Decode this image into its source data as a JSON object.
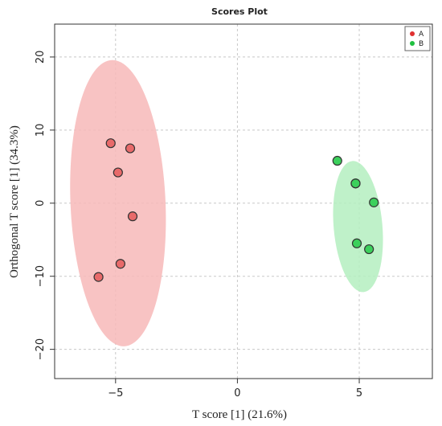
{
  "chart_data": {
    "type": "scatter",
    "title": "Scores Plot",
    "xlabel": "T score [1] (21.6%)",
    "ylabel": "Orthogonal T score [1] (34.3%)",
    "xlim": [
      -7.5,
      8
    ],
    "ylim": [
      -24,
      24.5
    ],
    "xticks": [
      -5,
      0,
      5
    ],
    "yticks": [
      -20,
      -10,
      0,
      10,
      20
    ],
    "grid": true,
    "legend_position": "top-right",
    "series": [
      {
        "name": "A",
        "color": "#e03030",
        "fill": "#e86a6a",
        "ellipse_color": "#f7b8b8",
        "points": [
          {
            "x": -5.2,
            "y": 8.2
          },
          {
            "x": -4.4,
            "y": 7.5
          },
          {
            "x": -4.9,
            "y": 4.2
          },
          {
            "x": -4.3,
            "y": -1.8
          },
          {
            "x": -4.8,
            "y": -8.3
          },
          {
            "x": -5.7,
            "y": -10.1
          }
        ],
        "ellipse": {
          "cx": -4.9,
          "cy": 0,
          "rx": 1.95,
          "ry": 19.6,
          "angle_deg": -2.5
        }
      },
      {
        "name": "B",
        "color": "#20c040",
        "fill": "#3cd05c",
        "ellipse_color": "#b4eec0",
        "points": [
          {
            "x": 4.1,
            "y": 5.8
          },
          {
            "x": 4.85,
            "y": 2.7
          },
          {
            "x": 4.85,
            "y": 2.7
          },
          {
            "x": 5.6,
            "y": 0.1
          },
          {
            "x": 4.9,
            "y": -5.5
          },
          {
            "x": 5.4,
            "y": -6.3
          }
        ],
        "ellipse": {
          "cx": 4.95,
          "cy": -3.2,
          "rx": 1.0,
          "ry": 9.0,
          "angle_deg": -5
        }
      }
    ]
  }
}
